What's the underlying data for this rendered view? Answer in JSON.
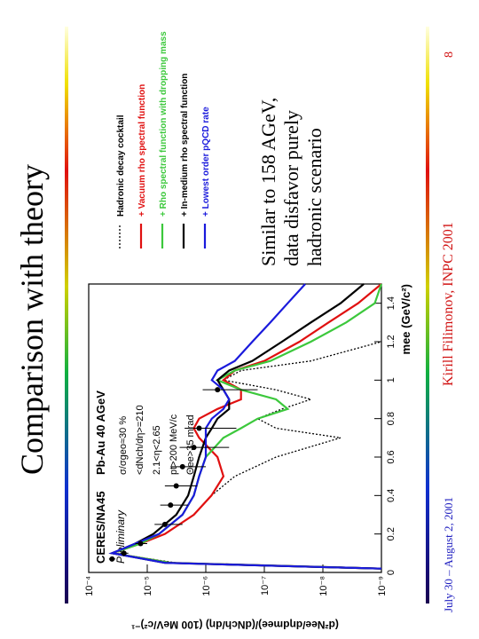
{
  "slide": {
    "title": "Comparison with theory",
    "notes": [
      "Similar to 158 AGeV,",
      "data disfavor purely",
      "hadronic scenario"
    ],
    "footer": {
      "date": "July 30 – August 2, 2001",
      "author": "Kirill Filimonov, INPC 2001",
      "page": "8"
    }
  },
  "chart_data": {
    "type": "line",
    "log_y": true,
    "labels": {
      "experiment": "CERES/NA45",
      "status": "Preliminary",
      "system": "Pb-Au 40 AGeV",
      "cuts": [
        "σ/σgeo≈30 %",
        "<dNch/dη>=210",
        "2.1<η<2.65",
        "pt>200 MeV/c",
        "Θee>35 mrad"
      ]
    },
    "x_label": "mee (GeV/c²)",
    "y_label": "(d²Nee/dηdmee)/(dNch/dη) (100 MeV/c²)⁻¹",
    "xlim": [
      0,
      1.5
    ],
    "xticks": [
      0,
      0.2,
      0.4,
      0.6,
      0.8,
      1,
      1.2,
      1.4
    ],
    "ylim": [
      1e-09,
      0.0001
    ],
    "yticks": [
      {
        "value": 1e-09,
        "label": "10⁻⁹"
      },
      {
        "value": 1e-08,
        "label": "10⁻⁸"
      },
      {
        "value": 1e-07,
        "label": "10⁻⁷"
      },
      {
        "value": 1e-06,
        "label": "10⁻⁶"
      },
      {
        "value": 1e-05,
        "label": "10⁻⁵"
      },
      {
        "value": 0.0001,
        "label": "10⁻⁴"
      }
    ],
    "x": [
      0.02,
      0.05,
      0.1,
      0.15,
      0.2,
      0.3,
      0.4,
      0.5,
      0.6,
      0.7,
      0.75,
      0.8,
      0.85,
      0.9,
      0.95,
      1.0,
      1.05,
      1.1,
      1.2,
      1.3,
      1.4,
      1.5
    ],
    "series": [
      {
        "name": "Hadronic decay cocktail",
        "color": "#000000",
        "line_style": "dotted",
        "values": [
          1e-09,
          3.2e-06,
          4e-05,
          1.3e-05,
          5e-06,
          1.6e-06,
          8e-07,
          3.2e-07,
          6.3e-08,
          5e-09,
          6.3e-08,
          1.3e-07,
          5e-08,
          1.6e-08,
          6.3e-08,
          5e-07,
          2.5e-07,
          1.6e-08,
          1e-09,
          null,
          null,
          null
        ]
      },
      {
        "name": "+ Vacuum rho spectral function",
        "color": "#e01010",
        "line_style": "solid",
        "values": [
          1e-09,
          4e-06,
          4e-05,
          1.3e-05,
          5e-06,
          1.6e-06,
          8e-07,
          5e-07,
          6.3e-07,
          1.3e-06,
          1.6e-06,
          1.3e-06,
          6.3e-07,
          2.5e-07,
          2.5e-07,
          5e-07,
          3.2e-07,
          1e-07,
          2.5e-08,
          8e-09,
          2.5e-09,
          1e-09
        ]
      },
      {
        "name": "+ Rho spectral function with dropping mass",
        "color": "#3cc83c",
        "line_style": "solid",
        "values": [
          1e-09,
          4e-06,
          4e-05,
          1.3e-05,
          6.3e-06,
          2.5e-06,
          1.6e-06,
          1.3e-06,
          1e-06,
          5e-07,
          2.5e-07,
          1.3e-07,
          4e-08,
          6.3e-08,
          2.5e-07,
          6.3e-07,
          3.2e-07,
          7.9e-08,
          1.6e-08,
          4e-09,
          1.3e-09,
          1e-09
        ]
      },
      {
        "name": "+ In-medium rho spectral function",
        "color": "#000000",
        "line_style": "solid",
        "values": [
          1e-09,
          5e-06,
          4e-05,
          1.6e-05,
          7.9e-06,
          3.2e-06,
          2e-06,
          1.6e-06,
          1.3e-06,
          1e-06,
          7.9e-07,
          6.3e-07,
          4e-07,
          4e-07,
          5e-07,
          6.3e-07,
          4e-07,
          1.6e-07,
          5e-08,
          1.6e-08,
          5e-09,
          2e-09
        ]
      },
      {
        "name": "+ Lowest order pQCD rate",
        "color": "#1a1adc",
        "line_style": "solid",
        "values": [
          1e-09,
          5e-06,
          4e-05,
          1.6e-05,
          6.3e-06,
          2.5e-06,
          1.6e-06,
          1.3e-06,
          1e-06,
          1e-06,
          1e-06,
          7.9e-07,
          5e-07,
          4e-07,
          5e-07,
          7.9e-07,
          6.3e-07,
          3.2e-07,
          1.6e-07,
          7.9e-08,
          4e-08,
          2e-08
        ]
      }
    ],
    "points": {
      "color": "#000000",
      "x": [
        0.07,
        0.1,
        0.15,
        0.25,
        0.35,
        0.45,
        0.55,
        0.65,
        0.75,
        0.95
      ],
      "values": [
        4e-05,
        2.5e-05,
        1.3e-05,
        5e-06,
        4e-06,
        3.2e-06,
        2.5e-06,
        1.6e-06,
        1.3e-06,
        6.3e-07
      ],
      "errors": [
        5e-06,
        4e-06,
        3e-06,
        2.5e-06,
        2e-06,
        1.8e-06,
        1.5e-06,
        1.2e-06,
        1e-06,
        5e-07
      ]
    }
  }
}
